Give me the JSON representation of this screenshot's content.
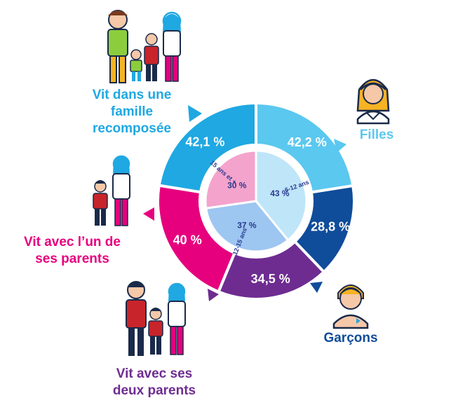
{
  "chart_data": {
    "type": "pie",
    "outer_ring": {
      "segments": [
        {
          "label": "Filles",
          "value": 42.2,
          "value_label": "42,2 %",
          "color": "#5bc8ef"
        },
        {
          "label": "Garçons",
          "value": 28.8,
          "value_label": "28,8 %",
          "color": "#0f4c9a"
        },
        {
          "label": "Vit avec ses deux parents",
          "value": 34.5,
          "value_label": "34,5 %",
          "color": "#6e2c91"
        },
        {
          "label": "Vit avec l'un de ses parents",
          "value": 40,
          "value_label": "40 %",
          "color": "#e6007e"
        },
        {
          "label": "Vit dans une famille recomposée",
          "value": 42.1,
          "value_label": "42,1 %",
          "color": "#1fa8e2"
        }
      ]
    },
    "inner_ring": {
      "segments": [
        {
          "label": "6-12 ans",
          "value": 43,
          "value_label": "43 %",
          "color": "#bfe5f8"
        },
        {
          "label": "12-15 ans",
          "value": 37,
          "value_label": "37 %",
          "color": "#9dc6f1"
        },
        {
          "label": "15 ans et +",
          "value": 30,
          "value_label": "30 %",
          "color": "#f4a3cc"
        }
      ]
    }
  },
  "labels": {
    "filles": "Filles",
    "garcons": "Garçons",
    "recomposee": [
      "Vit dans une",
      "famille",
      "recomposée"
    ],
    "un_parent": [
      "Vit avec l’un de",
      "ses parents"
    ],
    "deux_parents": [
      "Vit avec ses",
      "deux parents"
    ]
  },
  "colors": {
    "filles_text": "#5bc8ef",
    "garcons_text": "#0f4c9a",
    "recomposee_text": "#1fa8e2",
    "un_parent_text": "#e6007e",
    "deux_parents_text": "#6e2c91",
    "inner_text": "#2b3a8f"
  },
  "icons": [
    "family-recomposed-icon",
    "girl-icon",
    "parent-child-icon",
    "boy-icon",
    "family-two-parents-icon"
  ]
}
